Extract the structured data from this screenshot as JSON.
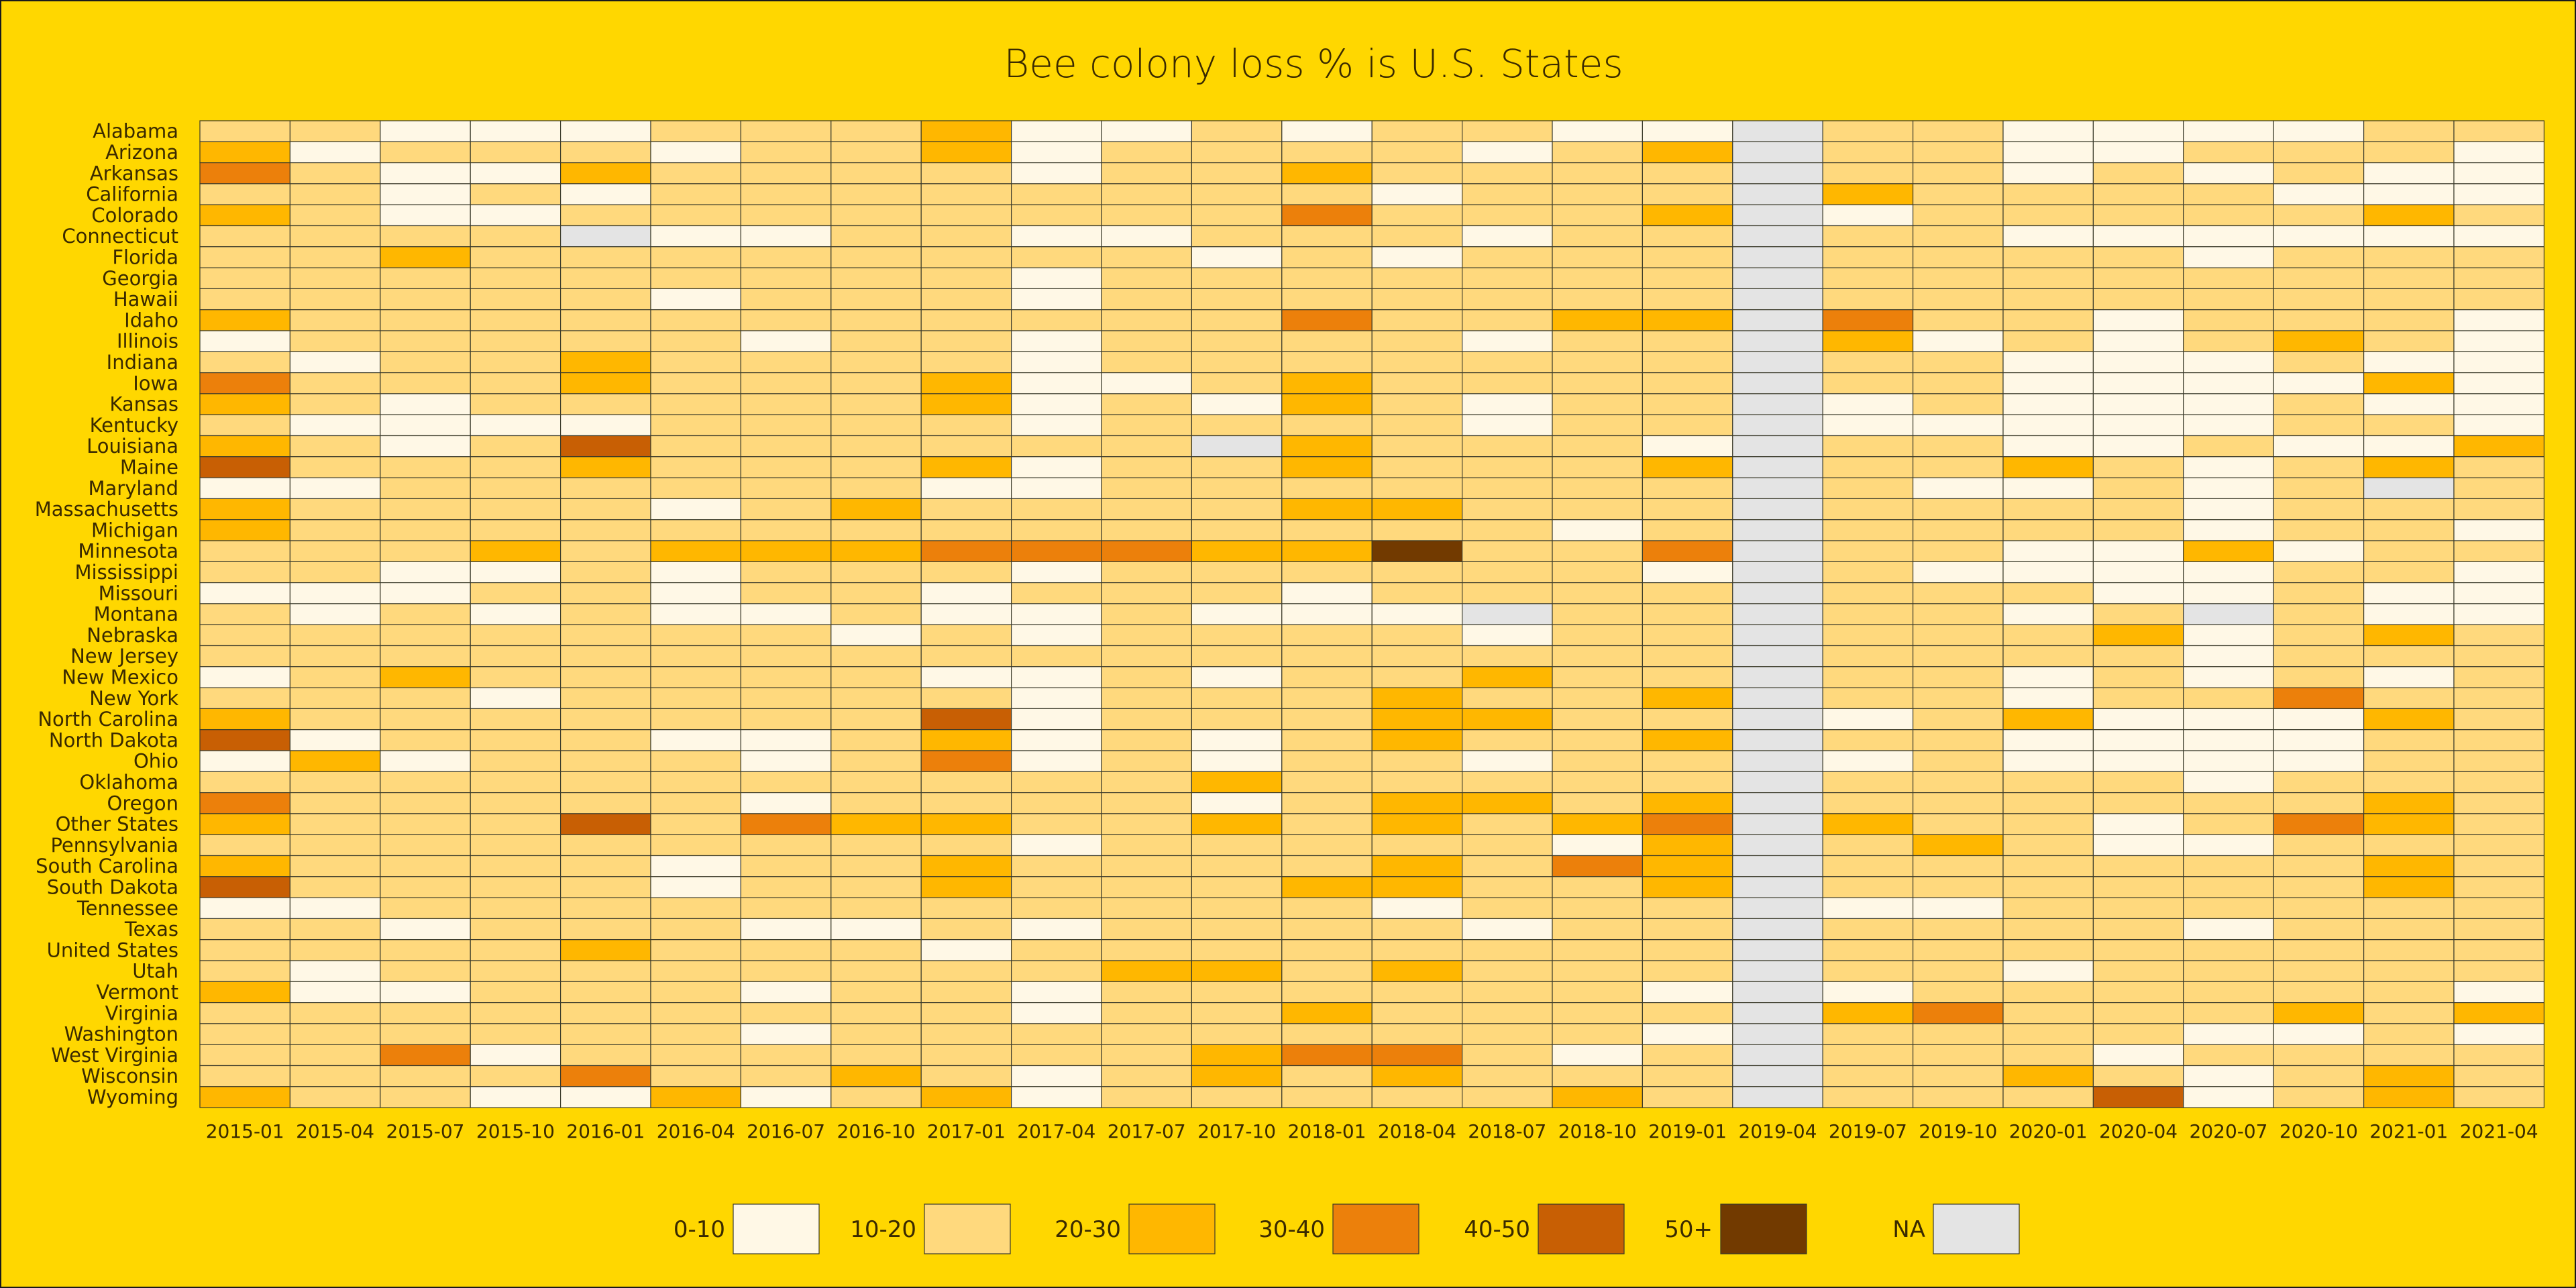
{
  "chart_data": {
    "type": "heatmap",
    "title": "Bee colony loss % is U.S. States",
    "columns": [
      "2015-01",
      "2015-04",
      "2015-07",
      "2015-10",
      "2016-01",
      "2016-04",
      "2016-07",
      "2016-10",
      "2017-01",
      "2017-04",
      "2017-07",
      "2017-10",
      "2018-01",
      "2018-04",
      "2018-07",
      "2018-10",
      "2019-01",
      "2019-04",
      "2019-07",
      "2019-10",
      "2020-01",
      "2020-04",
      "2020-07",
      "2020-10",
      "2021-01",
      "2021-04"
    ],
    "rows": [
      "Alabama",
      "Arizona",
      "Arkansas",
      "California",
      "Colorado",
      "Connecticut",
      "Florida",
      "Georgia",
      "Hawaii",
      "Idaho",
      "Illinois",
      "Indiana",
      "Iowa",
      "Kansas",
      "Kentucky",
      "Louisiana",
      "Maine",
      "Maryland",
      "Massachusetts",
      "Michigan",
      "Minnesota",
      "Mississippi",
      "Missouri",
      "Montana",
      "Nebraska",
      "New Jersey",
      "New Mexico",
      "New York",
      "North Carolina",
      "North Dakota",
      "Ohio",
      "Oklahoma",
      "Oregon",
      "Other States",
      "Pennsylvania",
      "South Carolina",
      "South Dakota",
      "Tennessee",
      "Texas",
      "United States",
      "Utah",
      "Vermont",
      "Virginia",
      "Washington",
      "West Virginia",
      "Wisconsin",
      "Wyoming"
    ],
    "value_encoding": "Each row string has one character per column: 0 = 0-10, 1 = 10-20, 2 = 20-30, 3 = 30-40, 4 = 40-50, 5 = 50+, N = NA",
    "values": [
      "11000111200101100N11000011",
      "20111011201111012N11001110",
      "31002111101121111N11010100",
      "11010111111110111N21111000",
      "21001111111131112N01111121",
      "1111N001100111011N11000000",
      "11211111111010111N11110111",
      "11111111101111111N11111111",
      "11111011101111111N11111111",
      "21111111111131122N31101110",
      "01111101101111011N20101210",
      "10112111101111111N11000100",
      "31112111200121111N11000020",
      "21011111201021011N01000100",
      "10000111101111011N00000110",
      "21014111111N21110N11001002",
      "41112111201121112N11210121",
      "00111111001111111N100101N1",
      "21111012111122111N11110111",
      "21111111111111101N11110110",
      "11121222333225113N11002011",
      "11001011101111110N10000110",
      "00011011011101111N11100100",
      "10101001001000N11N1101N100",
      "11111110101111011N11120121",
      "11111111111111111N11110111",
      "01211111001011211N11010101",
      "11101111101112112N11011311",
      "21111111401112211N01200021",
      "40111001201012112N11000011",
      "02011101301011011N01000011",
      "11111111111211111N11110111",
      "31111101111012212N11111121",
      "21114132211212123N21101321",
      "11111111101111102N12100111",
      "21111011211112132N11111121",
      "41111011211122112N11111121",
      "00111111111110111N00111111",
      "11011100101111011N11110111",
      "11112111011111111N11111111",
      "10111111112212111N11011111",
      "20011101101111110N01111110",
      "11111111101121111N23111212",
      "11111101111111110N11110010",
      "11301111111233101N11101111",
      "11113112101212111N11210121",
      "21100201201111121N11140121"
    ],
    "legend": [
      {
        "label": "0-10",
        "color": "#FFF8E6"
      },
      {
        "label": "10-20",
        "color": "#FFD97D"
      },
      {
        "label": "20-30",
        "color": "#FFB700"
      },
      {
        "label": "30-40",
        "color": "#EC800B"
      },
      {
        "label": "40-50",
        "color": "#C85F04"
      },
      {
        "label": "50+",
        "color": "#723A00"
      },
      {
        "label": "NA",
        "color": "#E4E4E4"
      }
    ],
    "legend_placement": "bottom",
    "background_color": "#FFD700",
    "code_colors": {
      "0": "#FFF8E6",
      "1": "#FFD97D",
      "2": "#FFB700",
      "3": "#EC800B",
      "4": "#C85F04",
      "5": "#723A00",
      "N": "#E4E4E4"
    }
  }
}
